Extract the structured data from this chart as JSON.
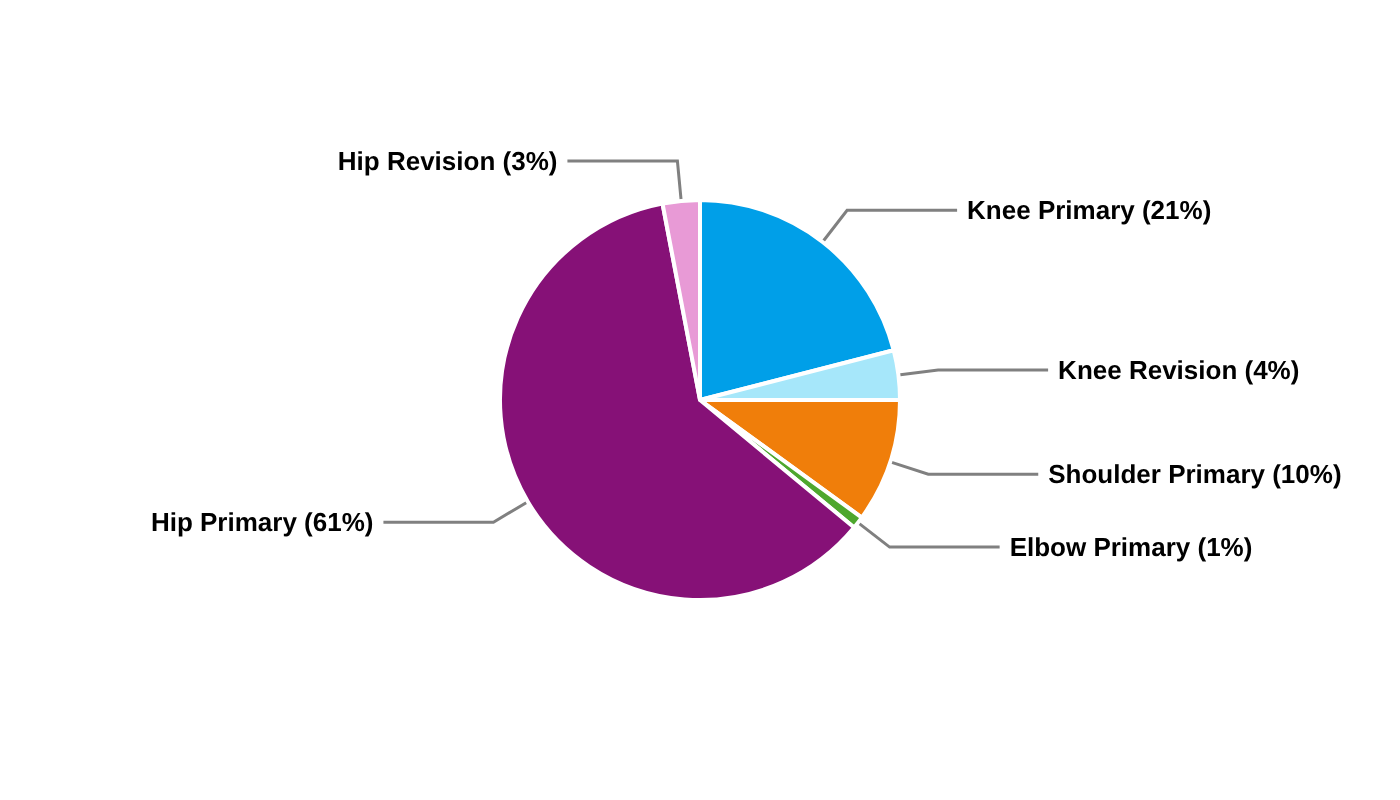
{
  "chart_data": {
    "type": "pie",
    "categories": [
      "Knee Primary",
      "Knee Revision",
      "Shoulder Primary",
      "Elbow Primary",
      "Hip Primary",
      "Hip Revision"
    ],
    "values": [
      21,
      4,
      10,
      1,
      61,
      3
    ],
    "value_labels": [
      "(21%)",
      "(4%)",
      "(10%)",
      "(1%)",
      "(61%)",
      "(3%)"
    ],
    "colors": [
      "#009fe8",
      "#a6e7fa",
      "#f07e0a",
      "#4ea72e",
      "#861177",
      "#e89ad6"
    ],
    "legend": false
  }
}
